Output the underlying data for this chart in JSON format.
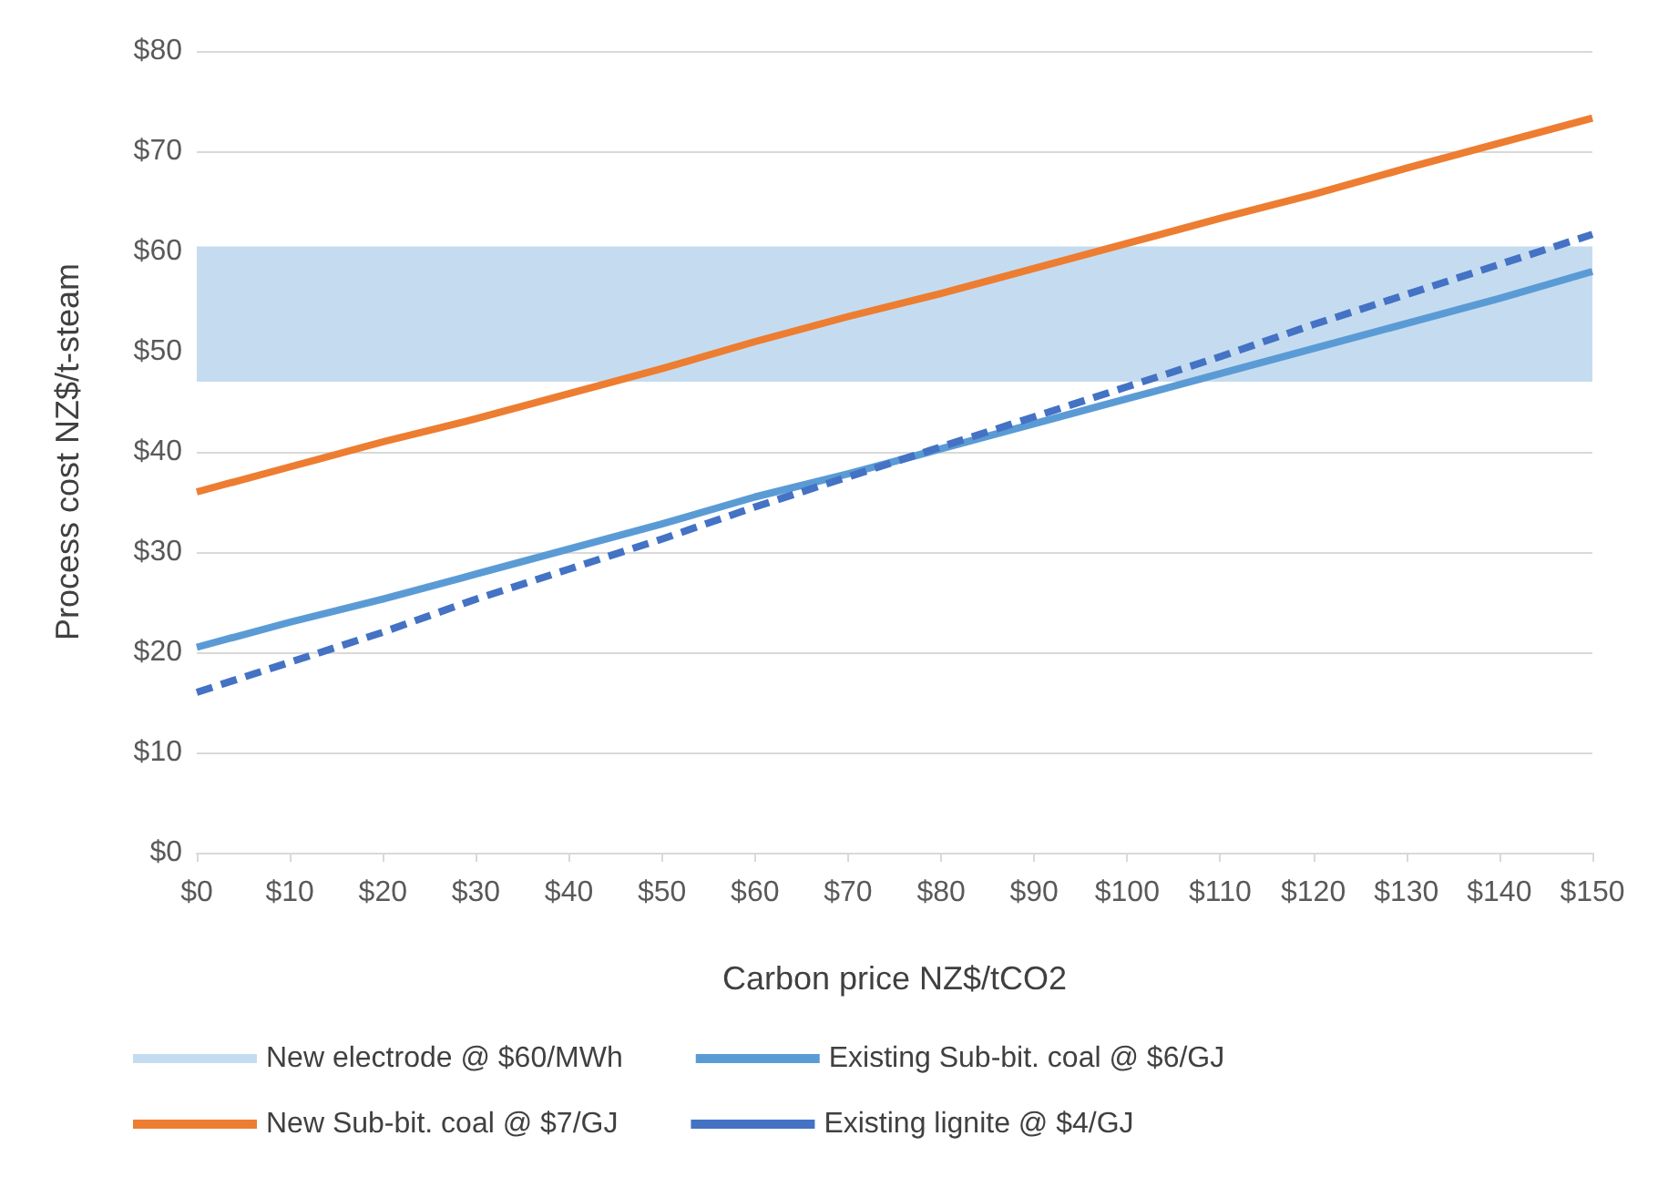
{
  "chart_data": {
    "type": "line",
    "xlabel": "Carbon price NZ$/tCO2",
    "ylabel": "Process cost NZ$/t-steam",
    "x": [
      0,
      10,
      20,
      30,
      40,
      50,
      60,
      70,
      80,
      90,
      100,
      110,
      120,
      130,
      140,
      150
    ],
    "series": [
      {
        "name": "New Sub-bit. coal @ $7/GJ",
        "color": "#ed7d31",
        "line_style": "solid",
        "values": [
          36,
          38.5,
          41,
          43.3,
          45.8,
          48.3,
          51,
          53.5,
          55.8,
          58.3,
          60.8,
          63.3,
          65.7,
          68.3,
          70.8,
          73.3
        ]
      },
      {
        "name": "Existing Sub-bit. coal @ $6/GJ",
        "color": "#5b9bd5",
        "line_style": "solid",
        "values": [
          20.5,
          23,
          25.3,
          27.8,
          30.3,
          32.8,
          35.5,
          37.8,
          40.3,
          42.8,
          45.3,
          47.8,
          50.3,
          52.8,
          55.3,
          58
        ]
      },
      {
        "name": "Existing lignite @ $4/GJ",
        "color": "#4472c4",
        "line_style": "dashed",
        "values": [
          16,
          19,
          22,
          25.3,
          28.3,
          31.3,
          34.5,
          37.5,
          40.5,
          43.5,
          46.5,
          49.5,
          52.7,
          55.7,
          58.7,
          61.7
        ]
      }
    ],
    "bands": [
      {
        "axis": "y",
        "from": 47,
        "to": 60.5,
        "label": "New electrode @ $60/MWh",
        "color": "#c5dcf0"
      }
    ],
    "xlim": [
      0,
      150
    ],
    "xticks": [
      {
        "value": 0,
        "label": "$0"
      },
      {
        "value": 10,
        "label": "$10"
      },
      {
        "value": 20,
        "label": "$20"
      },
      {
        "value": 30,
        "label": "$30"
      },
      {
        "value": 40,
        "label": "$40"
      },
      {
        "value": 50,
        "label": "$50"
      },
      {
        "value": 60,
        "label": "$60"
      },
      {
        "value": 70,
        "label": "$70"
      },
      {
        "value": 80,
        "label": "$80"
      },
      {
        "value": 90,
        "label": "$90"
      },
      {
        "value": 100,
        "label": "$100"
      },
      {
        "value": 110,
        "label": "$110"
      },
      {
        "value": 120,
        "label": "$120"
      },
      {
        "value": 130,
        "label": "$130"
      },
      {
        "value": 140,
        "label": "$140"
      },
      {
        "value": 150,
        "label": "$150"
      }
    ],
    "ylim": [
      0,
      80
    ],
    "yticks": [
      {
        "value": 0,
        "label": "$0"
      },
      {
        "value": 10,
        "label": "$10"
      },
      {
        "value": 20,
        "label": "$20"
      },
      {
        "value": 30,
        "label": "$30"
      },
      {
        "value": 40,
        "label": "$40"
      },
      {
        "value": 50,
        "label": "$50"
      },
      {
        "value": 60,
        "label": "$60"
      },
      {
        "value": 70,
        "label": "$70"
      },
      {
        "value": 80,
        "label": "$80"
      }
    ],
    "grid": "y",
    "legend": "bottom",
    "marker": "none"
  }
}
